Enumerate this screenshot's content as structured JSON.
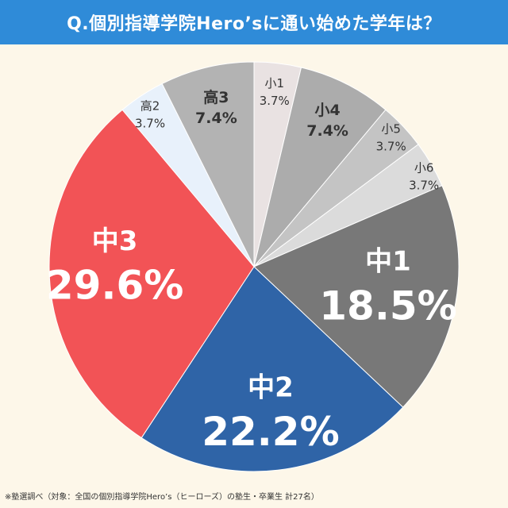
{
  "title": "Q.個別指導学院Hero’sに通い始めた学年は？",
  "footnote": "※塾選調べ（対象：全国の個別指導学院Hero’s（ヒーローズ）の塾生・卒業生 計27名）",
  "chart_data": {
    "type": "pie",
    "title": "Q.個別指導学院Hero’sに通い始めた学年は？",
    "start": "12 o'clock, clockwise",
    "slices": [
      {
        "label": "小1",
        "percent_label": "3.7%",
        "value": 3.7,
        "color": "#e9e2e2",
        "text_color": "#333333",
        "label_style": "small"
      },
      {
        "label": "小4",
        "percent_label": "7.4%",
        "value": 7.4,
        "color": "#acacac",
        "text_color": "#333333",
        "label_style": "medium"
      },
      {
        "label": "小5",
        "percent_label": "3.7%",
        "value": 3.7,
        "color": "#c4c4c4",
        "text_color": "#333333",
        "label_style": "small"
      },
      {
        "label": "小6",
        "percent_label": "3.7%",
        "value": 3.7,
        "color": "#dbdbdb",
        "text_color": "#333333",
        "label_style": "small"
      },
      {
        "label": "中1",
        "percent_label": "18.5%",
        "value": 18.5,
        "color": "#787878",
        "text_color": "#ffffff",
        "label_style": "large"
      },
      {
        "label": "中2",
        "percent_label": "22.2%",
        "value": 22.2,
        "color": "#2f64a7",
        "text_color": "#ffffff",
        "label_style": "large"
      },
      {
        "label": "中3",
        "percent_label": "29.6%",
        "value": 29.6,
        "color": "#f25356",
        "text_color": "#ffffff",
        "label_style": "large"
      },
      {
        "label": "高2",
        "percent_label": "3.7%",
        "value": 3.7,
        "color": "#e8f1fb",
        "text_color": "#333333",
        "label_style": "small"
      },
      {
        "label": "高3",
        "percent_label": "7.4%",
        "value": 7.4,
        "color": "#b3b3b3",
        "text_color": "#333333",
        "label_style": "medium"
      }
    ]
  }
}
